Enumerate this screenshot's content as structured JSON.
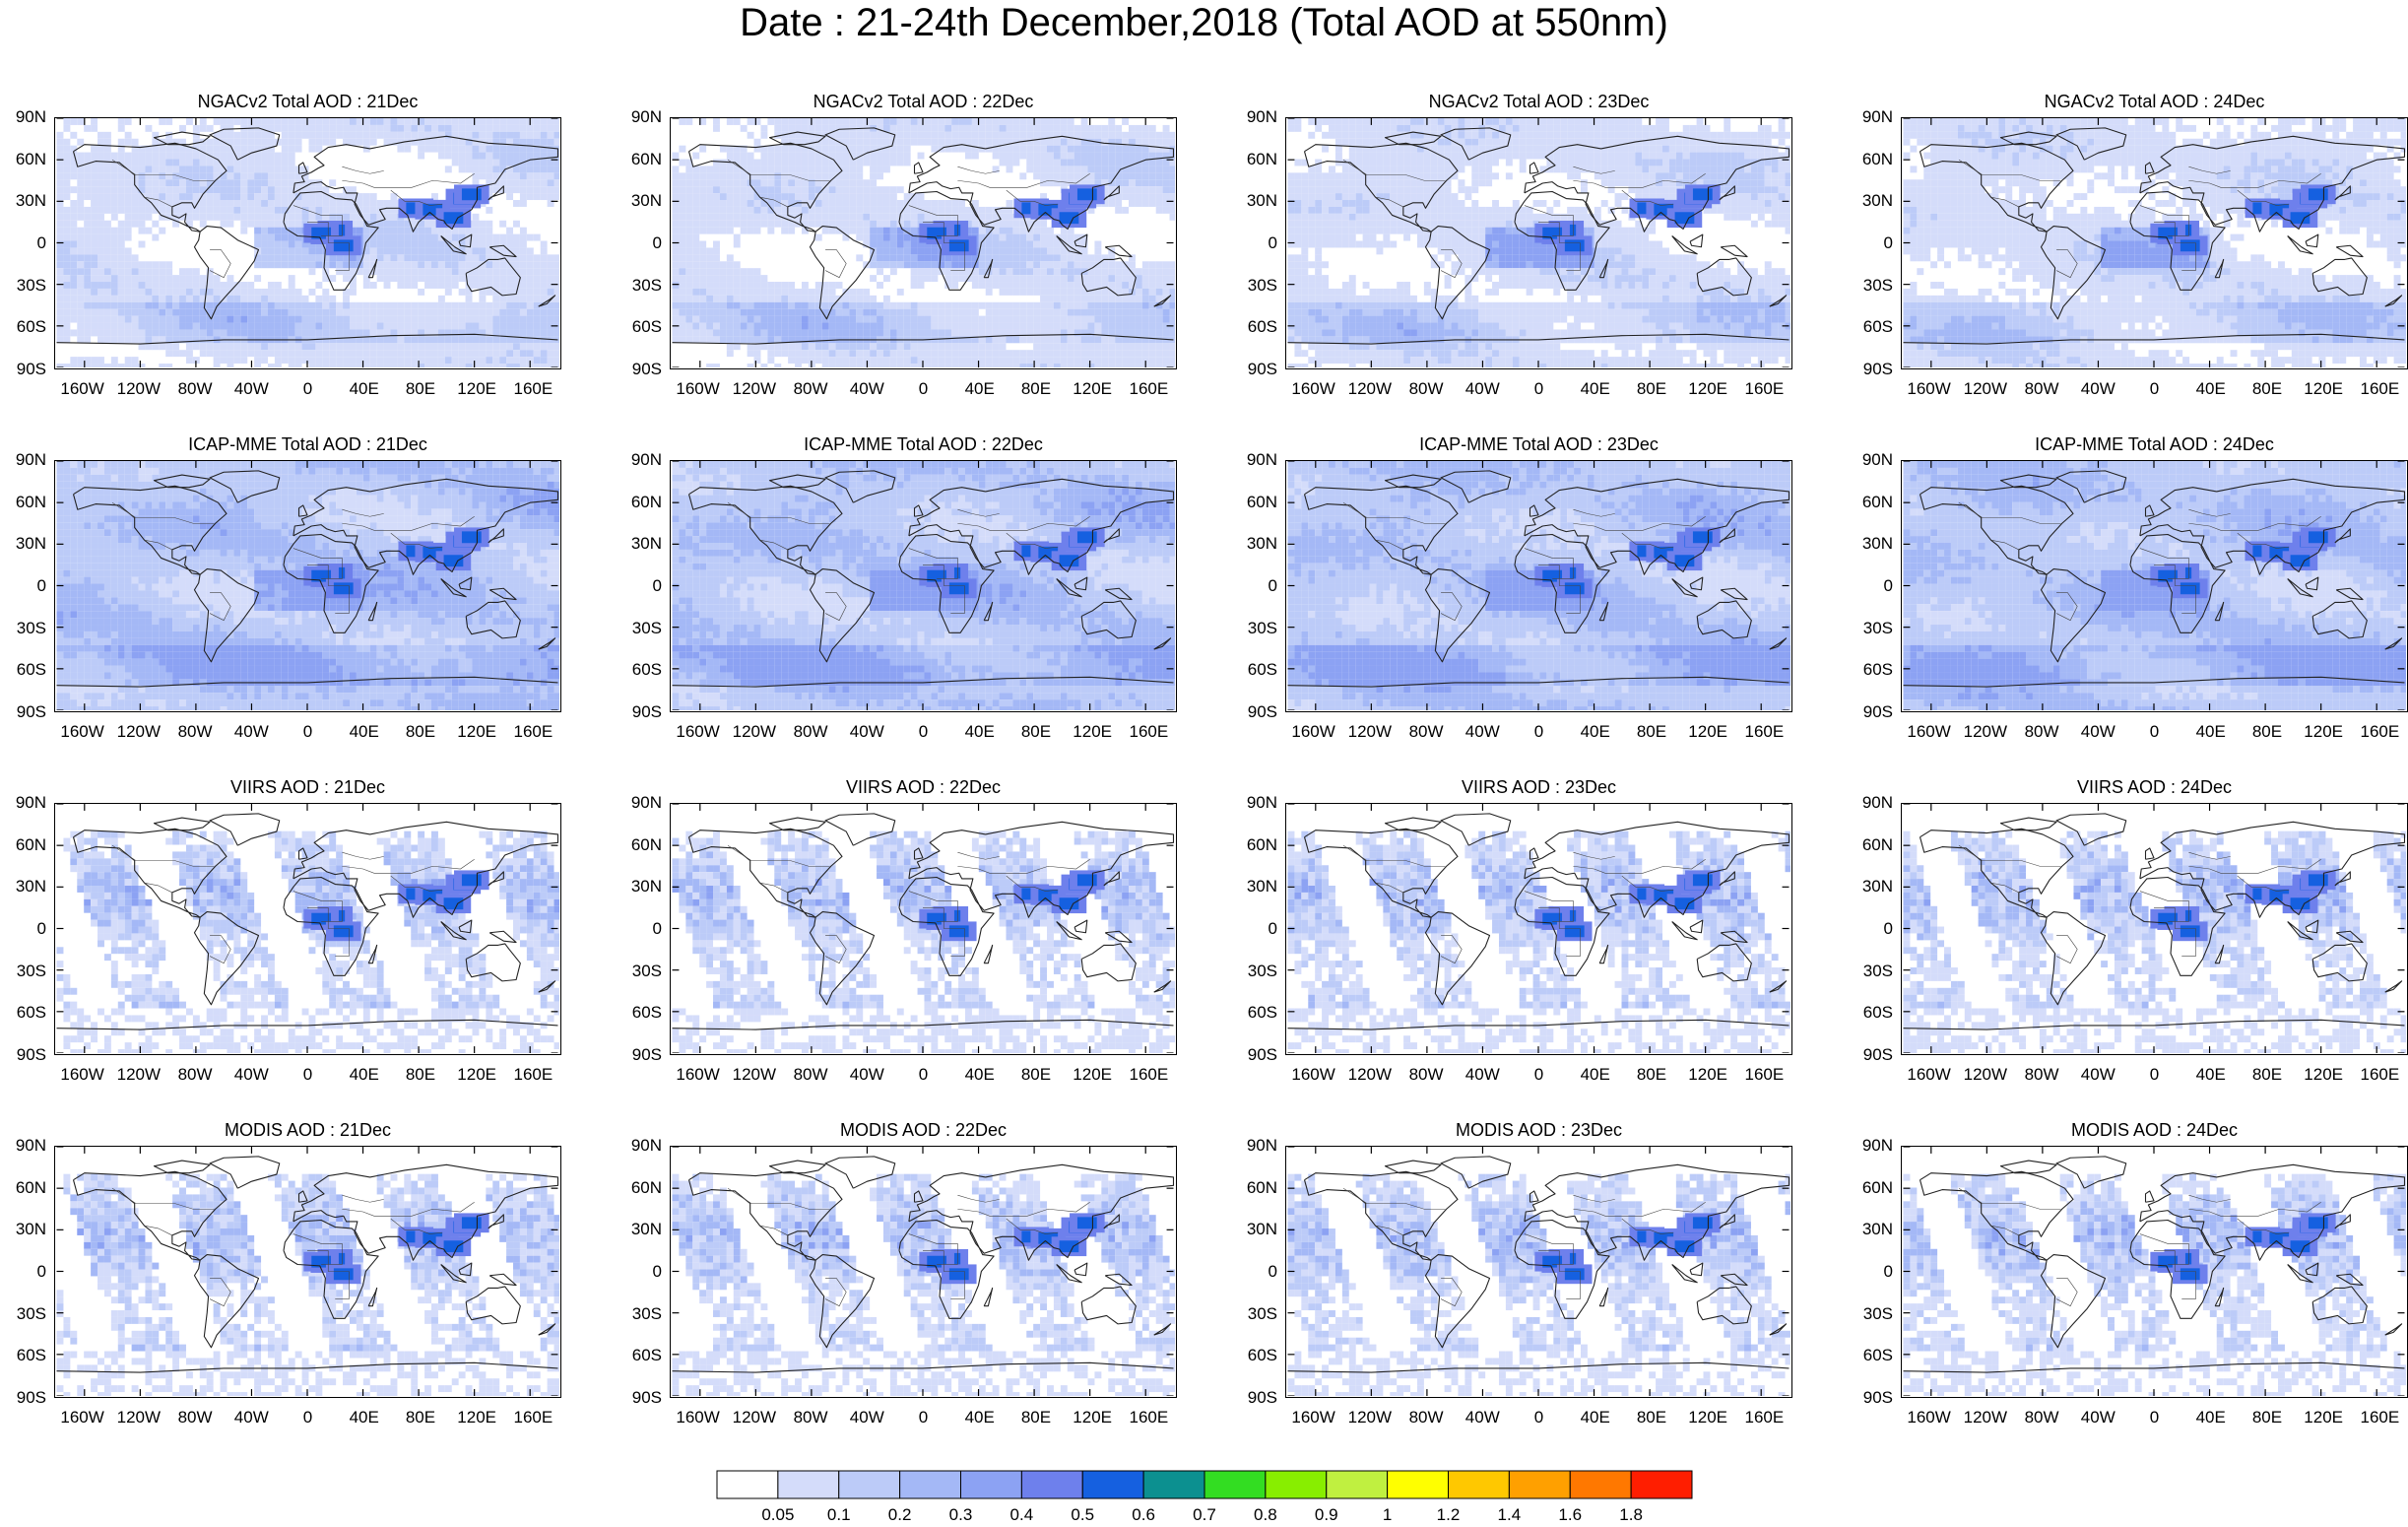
{
  "title": "Date : 21-24th December,2018 (Total AOD at 550nm)",
  "chart_data": {
    "type": "heatmap",
    "rows": [
      {
        "model": "NGACv2 Total AOD",
        "coverage": "full",
        "level": 1
      },
      {
        "model": "ICAP-MME Total AOD",
        "coverage": "full",
        "level": 2
      },
      {
        "model": "VIIRS AOD",
        "coverage": "swath",
        "level": 1
      },
      {
        "model": "MODIS AOD",
        "coverage": "swath",
        "level": 1
      }
    ],
    "dates": [
      "21Dec",
      "22Dec",
      "23Dec",
      "24Dec"
    ],
    "panel_titles": [
      [
        "NGACv2 Total AOD : 21Dec",
        "NGACv2 Total AOD : 22Dec",
        "NGACv2 Total AOD : 23Dec",
        "NGACv2 Total AOD : 24Dec"
      ],
      [
        "ICAP-MME Total AOD : 21Dec",
        "ICAP-MME Total AOD : 22Dec",
        "ICAP-MME Total AOD : 23Dec",
        "ICAP-MME Total AOD : 24Dec"
      ],
      [
        "VIIRS AOD : 21Dec",
        "VIIRS AOD : 22Dec",
        "VIIRS AOD : 23Dec",
        "VIIRS AOD : 24Dec"
      ],
      [
        "MODIS AOD : 21Dec",
        "MODIS AOD : 22Dec",
        "MODIS AOD : 23Dec",
        "MODIS AOD : 24Dec"
      ]
    ],
    "y_ticks": [
      "90N",
      "60N",
      "30N",
      "0",
      "30S",
      "60S",
      "90S"
    ],
    "x_ticks": [
      "160W",
      "120W",
      "80W",
      "40W",
      "0",
      "40E",
      "80E",
      "120E",
      "160E"
    ],
    "x_tick_lon": [
      -160,
      -120,
      -80,
      -40,
      0,
      40,
      80,
      120,
      160
    ],
    "xlim": [
      -180,
      180
    ],
    "ylim": [
      -90,
      90
    ],
    "colorbar": {
      "levels": [
        "0.05",
        "0.1",
        "0.2",
        "0.3",
        "0.4",
        "0.5",
        "0.6",
        "0.7",
        "0.8",
        "0.9",
        "1",
        "1.2",
        "1.4",
        "1.6",
        "1.8"
      ],
      "colors": [
        "#ffffff",
        "#d4dcfa",
        "#bccbf8",
        "#a4b8f6",
        "#8ca2f3",
        "#6e80ec",
        "#1560e0",
        "#0c9090",
        "#33dd22",
        "#88ee00",
        "#c0f040",
        "#ffff00",
        "#ffc800",
        "#ffa000",
        "#ff7800",
        "#ff1e00"
      ]
    }
  }
}
